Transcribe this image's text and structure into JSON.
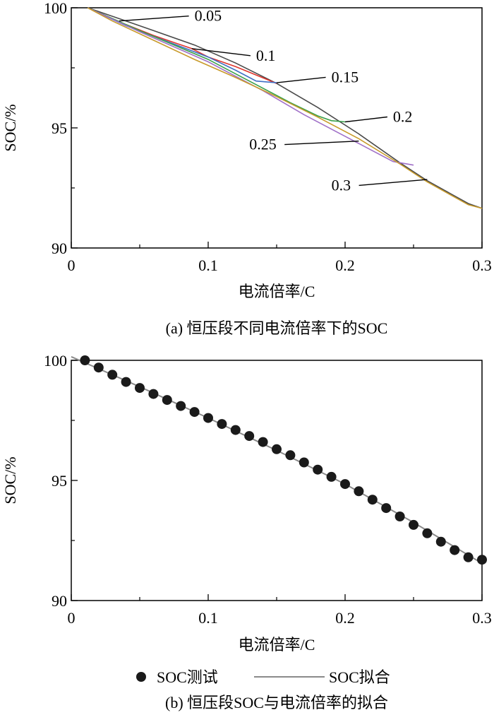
{
  "chart_data": [
    {
      "type": "line",
      "caption": "(a) 恒压段不同电流倍率下的SOC",
      "xlabel": "电流倍率/C",
      "ylabel": "SOC/%",
      "xlim": [
        0,
        0.3
      ],
      "ylim": [
        90,
        100
      ],
      "x_ticks": [
        "0",
        "0.1",
        "0.2",
        "0.3"
      ],
      "y_ticks": [
        "90",
        "95",
        "100"
      ],
      "series": [
        {
          "name": "0.05",
          "color": "#4a4a4a",
          "points": [
            [
              0.012,
              100
            ],
            [
              0.04,
              99.45
            ],
            [
              0.06,
              99.05
            ],
            [
              0.09,
              98.45
            ],
            [
              0.12,
              97.7
            ],
            [
              0.15,
              96.85
            ],
            [
              0.18,
              95.85
            ],
            [
              0.21,
              94.75
            ],
            [
              0.24,
              93.55
            ],
            [
              0.26,
              92.8
            ],
            [
              0.29,
              91.85
            ],
            [
              0.3,
              91.65
            ]
          ]
        },
        {
          "name": "0.1",
          "color": "#e0342c",
          "points": [
            [
              0.012,
              100
            ],
            [
              0.04,
              99.3
            ],
            [
              0.06,
              98.85
            ],
            [
              0.088,
              98.3
            ],
            [
              0.1,
              97.95
            ],
            [
              0.12,
              97.55
            ],
            [
              0.15,
              96.85
            ]
          ]
        },
        {
          "name": "0.15",
          "color": "#3f6fc4",
          "points": [
            [
              0.012,
              100
            ],
            [
              0.04,
              99.25
            ],
            [
              0.07,
              98.6
            ],
            [
              0.1,
              97.95
            ],
            [
              0.12,
              97.4
            ],
            [
              0.135,
              96.95
            ],
            [
              0.15,
              96.88
            ]
          ]
        },
        {
          "name": "0.2",
          "color": "#3aa04a",
          "points": [
            [
              0.012,
              100
            ],
            [
              0.05,
              99.05
            ],
            [
              0.1,
              97.85
            ],
            [
              0.13,
              96.95
            ],
            [
              0.16,
              96.05
            ],
            [
              0.18,
              95.5
            ],
            [
              0.19,
              95.3
            ],
            [
              0.2,
              95.25
            ]
          ]
        },
        {
          "name": "0.25",
          "color": "#a070c8",
          "points": [
            [
              0.012,
              100
            ],
            [
              0.05,
              99.0
            ],
            [
              0.1,
              97.75
            ],
            [
              0.14,
              96.55
            ],
            [
              0.17,
              95.55
            ],
            [
              0.2,
              94.65
            ],
            [
              0.22,
              94.05
            ],
            [
              0.235,
              93.6
            ],
            [
              0.25,
              93.45
            ]
          ]
        },
        {
          "name": "0.3",
          "color": "#c89a2a",
          "points": [
            [
              0.012,
              100
            ],
            [
              0.03,
              99.45
            ],
            [
              0.06,
              98.65
            ],
            [
              0.09,
              97.85
            ],
            [
              0.12,
              97.1
            ],
            [
              0.15,
              96.3
            ],
            [
              0.18,
              95.45
            ],
            [
              0.21,
              94.55
            ],
            [
              0.24,
              93.5
            ],
            [
              0.26,
              92.75
            ],
            [
              0.29,
              91.8
            ],
            [
              0.3,
              91.65
            ]
          ]
        }
      ],
      "annotations": [
        {
          "text": "0.05",
          "x": 0.09,
          "y": 99.45,
          "at": [
            0.035,
            99.45
          ]
        },
        {
          "text": "0.1",
          "x": 0.135,
          "y": 97.8,
          "at": [
            0.088,
            98.3
          ]
        },
        {
          "text": "0.15",
          "x": 0.19,
          "y": 96.9,
          "at": [
            0.15,
            96.88
          ]
        },
        {
          "text": "0.2",
          "x": 0.235,
          "y": 95.25,
          "at": [
            0.2,
            95.25
          ]
        },
        {
          "text": "0.25",
          "x": 0.13,
          "y": 94.1,
          "at": [
            0.21,
            94.45
          ]
        },
        {
          "text": "0.3",
          "x": 0.19,
          "y": 92.4,
          "at": [
            0.26,
            92.85
          ]
        }
      ]
    },
    {
      "type": "scatter",
      "caption": "(b) 恒压段SOC与电流倍率的拟合",
      "xlabel": "电流倍率/C",
      "ylabel": "SOC/%",
      "xlim": [
        0,
        0.3
      ],
      "ylim": [
        90,
        100
      ],
      "x_ticks": [
        "0",
        "0.1",
        "0.2",
        "0.3"
      ],
      "y_ticks": [
        "90",
        "95",
        "100"
      ],
      "legend_position": "bottom",
      "series": [
        {
          "name": "SOC测试",
          "type": "scatter",
          "color": "#1a1a1a",
          "x": [
            0.01,
            0.02,
            0.03,
            0.04,
            0.05,
            0.06,
            0.07,
            0.08,
            0.09,
            0.1,
            0.11,
            0.12,
            0.13,
            0.14,
            0.15,
            0.16,
            0.17,
            0.18,
            0.19,
            0.2,
            0.21,
            0.22,
            0.23,
            0.24,
            0.25,
            0.26,
            0.27,
            0.28,
            0.29,
            0.3
          ],
          "y": [
            100.0,
            99.7,
            99.4,
            99.1,
            98.85,
            98.6,
            98.35,
            98.1,
            97.85,
            97.6,
            97.35,
            97.1,
            96.85,
            96.6,
            96.3,
            96.05,
            95.75,
            95.45,
            95.15,
            94.85,
            94.55,
            94.2,
            93.85,
            93.5,
            93.15,
            92.8,
            92.45,
            92.1,
            91.8,
            91.7
          ]
        },
        {
          "name": "SOC拟合",
          "type": "line",
          "color": "#8a8a8a",
          "x": [
            0.0,
            0.05,
            0.1,
            0.15,
            0.2,
            0.25,
            0.3
          ],
          "y": [
            100.15,
            98.9,
            97.6,
            96.25,
            94.85,
            93.25,
            91.55
          ]
        }
      ]
    }
  ]
}
